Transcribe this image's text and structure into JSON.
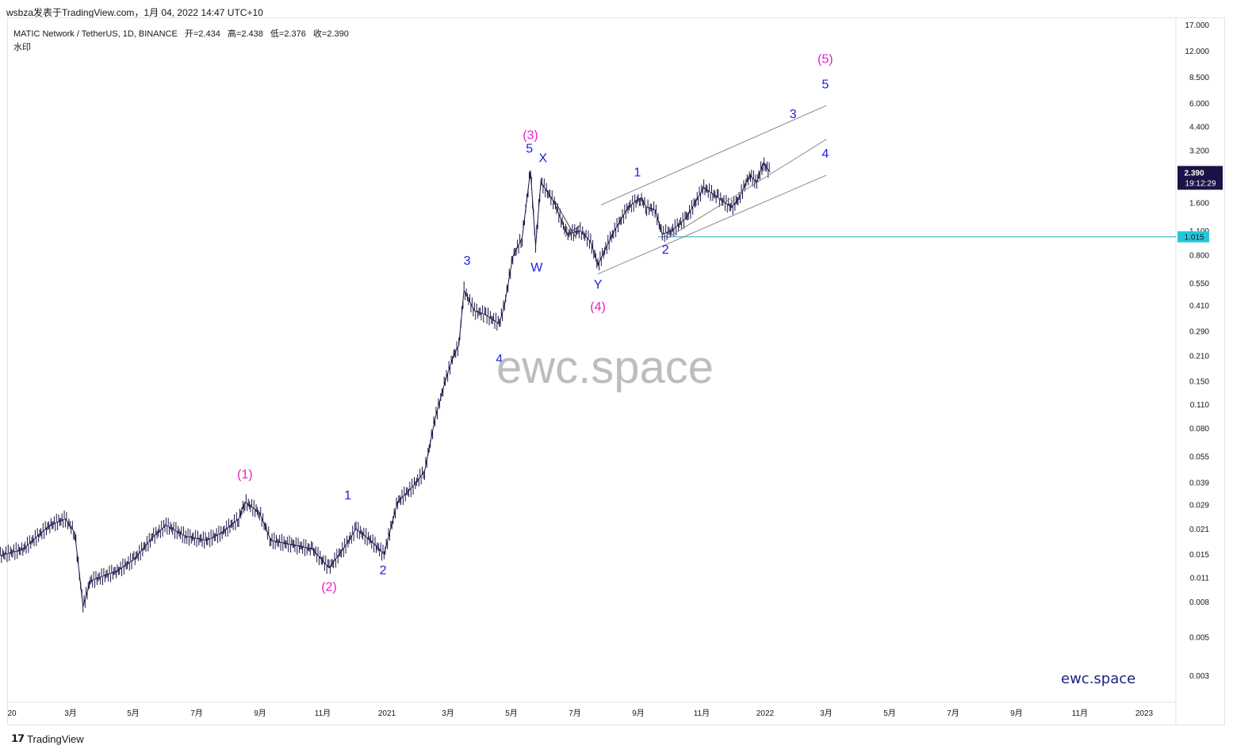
{
  "header": {
    "publish_line": "wsbza发表于TradingView.com，1月 04, 2022 14:47 UTC+10"
  },
  "symbol_info": {
    "name": "MATIC Network / TetherUS, 1D, BINANCE",
    "open": "开=2.434",
    "high": "高=2.438",
    "low": "低=2.376",
    "close": "收=2.390"
  },
  "watermark_label": "水印",
  "big_watermark": "ewc.space",
  "small_brand": "ewc.space",
  "footer": {
    "brand": "TradingView"
  },
  "colors": {
    "candles": "#1a1446",
    "wave_primary": "#e91ec7",
    "wave_minor": "#1e22d6",
    "channel": "#8a8a8a",
    "support_line": "#26a9c6",
    "price_badge_bg": "#1a1446",
    "support_badge_bg": "#26c6da"
  },
  "chart_data": {
    "type": "line",
    "scale": "log",
    "y_axis_ticks": [
      "17.000",
      "12.000",
      "8.500",
      "6.000",
      "4.400",
      "3.200",
      "2.200",
      "1.600",
      "1.100",
      "0.800",
      "0.550",
      "0.410",
      "0.290",
      "0.210",
      "0.150",
      "0.110",
      "0.080",
      "0.055",
      "0.039",
      "0.029",
      "0.021",
      "0.015",
      "0.011",
      "0.008",
      "0.005",
      "0.003"
    ],
    "x_axis_ticks": [
      "20",
      "3月",
      "5月",
      "7月",
      "9月",
      "11月",
      "2021",
      "3月",
      "5月",
      "7月",
      "9月",
      "11月",
      "2022",
      "3月",
      "5月",
      "7月",
      "9月",
      "11月",
      "2023"
    ],
    "current_price": "2.390",
    "countdown": "19:12:29",
    "support_level": "1.015",
    "price_path": [
      [
        "2019-12-20",
        0.0145
      ],
      [
        "2020-01-15",
        0.016
      ],
      [
        "2020-02-10",
        0.022
      ],
      [
        "2020-02-25",
        0.024
      ],
      [
        "2020-03-05",
        0.02
      ],
      [
        "2020-03-13",
        0.0075
      ],
      [
        "2020-03-20",
        0.0105
      ],
      [
        "2020-04-15",
        0.012
      ],
      [
        "2020-05-01",
        0.014
      ],
      [
        "2020-05-20",
        0.019
      ],
      [
        "2020-06-01",
        0.022
      ],
      [
        "2020-06-20",
        0.019
      ],
      [
        "2020-07-10",
        0.018
      ],
      [
        "2020-07-25",
        0.02
      ],
      [
        "2020-08-10",
        0.024
      ],
      [
        "2020-08-16",
        0.03
      ],
      [
        "2020-08-30",
        0.026
      ],
      [
        "2020-09-10",
        0.018
      ],
      [
        "2020-10-01",
        0.017
      ],
      [
        "2020-10-20",
        0.016
      ],
      [
        "2020-11-05",
        0.0125
      ],
      [
        "2020-11-20",
        0.0165
      ],
      [
        "2020-12-01",
        0.021
      ],
      [
        "2020-12-15",
        0.018
      ],
      [
        "2020-12-28",
        0.015
      ],
      [
        "2021-01-10",
        0.03
      ],
      [
        "2021-01-25",
        0.037
      ],
      [
        "2021-02-05",
        0.045
      ],
      [
        "2021-02-15",
        0.09
      ],
      [
        "2021-02-25",
        0.15
      ],
      [
        "2021-03-05",
        0.21
      ],
      [
        "2021-03-10",
        0.24
      ],
      [
        "2021-03-15",
        0.5
      ],
      [
        "2021-03-25",
        0.38
      ],
      [
        "2021-04-05",
        0.36
      ],
      [
        "2021-04-18",
        0.32
      ],
      [
        "2021-04-23",
        0.41
      ],
      [
        "2021-05-01",
        0.78
      ],
      [
        "2021-05-10",
        1.0
      ],
      [
        "2021-05-18",
        2.45
      ],
      [
        "2021-05-23",
        0.9
      ],
      [
        "2021-05-28",
        2.1
      ],
      [
        "2021-06-10",
        1.6
      ],
      [
        "2021-06-22",
        1.05
      ],
      [
        "2021-07-05",
        1.1
      ],
      [
        "2021-07-15",
        0.95
      ],
      [
        "2021-07-22",
        0.7
      ],
      [
        "2021-08-05",
        1.05
      ],
      [
        "2021-08-20",
        1.5
      ],
      [
        "2021-09-01",
        1.7
      ],
      [
        "2021-09-07",
        1.5
      ],
      [
        "2021-09-15",
        1.45
      ],
      [
        "2021-09-22",
        1.05
      ],
      [
        "2021-10-01",
        1.1
      ],
      [
        "2021-10-15",
        1.3
      ],
      [
        "2021-11-01",
        1.95
      ],
      [
        "2021-11-15",
        1.7
      ],
      [
        "2021-11-28",
        1.5
      ],
      [
        "2021-12-05",
        1.7
      ],
      [
        "2021-12-15",
        2.3
      ],
      [
        "2021-12-22",
        2.1
      ],
      [
        "2021-12-28",
        2.7
      ],
      [
        "2022-01-04",
        2.39
      ]
    ],
    "wave_labels": [
      {
        "text": "(1)",
        "level": "primary"
      },
      {
        "text": "(2)",
        "level": "primary"
      },
      {
        "text": "(3)",
        "level": "primary"
      },
      {
        "text": "(4)",
        "level": "primary"
      },
      {
        "text": "(5)",
        "level": "primary"
      },
      {
        "text": "1",
        "level": "minor"
      },
      {
        "text": "2",
        "level": "minor"
      },
      {
        "text": "3",
        "level": "minor"
      },
      {
        "text": "4",
        "level": "minor"
      },
      {
        "text": "5",
        "level": "minor"
      },
      {
        "text": "W",
        "level": "minor"
      },
      {
        "text": "X",
        "level": "minor"
      },
      {
        "text": "Y",
        "level": "minor"
      },
      {
        "text": "1",
        "level": "minor"
      },
      {
        "text": "2",
        "level": "minor"
      },
      {
        "text": "3",
        "level": "minor"
      },
      {
        "text": "4",
        "level": "minor"
      },
      {
        "text": "5",
        "level": "minor"
      }
    ]
  }
}
